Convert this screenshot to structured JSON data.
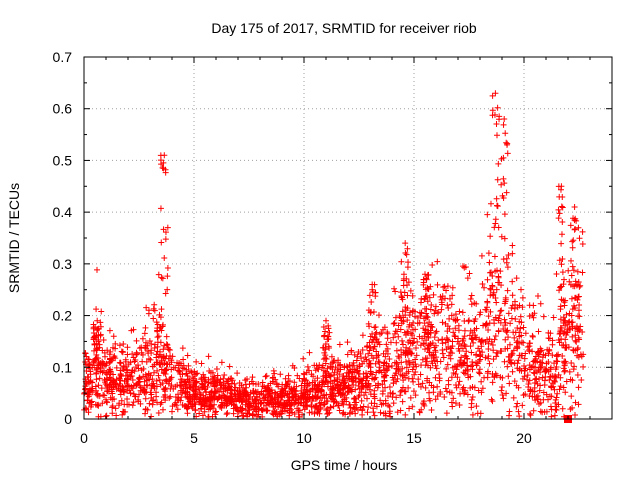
{
  "chart_data": {
    "type": "scatter",
    "title": "Day 175 of 2017, SRMTID for receiver riob",
    "xlabel": "GPS time / hours",
    "ylabel": "SRMTID / TECUs",
    "xlim": [
      0,
      24
    ],
    "ylim": [
      0,
      0.7
    ],
    "x_ticks": [
      0,
      5,
      10,
      15,
      20
    ],
    "x_tick_labels": [
      "0",
      "5",
      "10",
      "15",
      "20"
    ],
    "y_ticks": [
      0,
      0.1,
      0.2,
      0.3,
      0.4,
      0.5,
      0.6,
      0.7
    ],
    "y_tick_labels": [
      "0",
      "0.1",
      "0.2",
      "0.3",
      "0.4",
      "0.5",
      "0.6",
      "0.7"
    ],
    "grid": true,
    "marker": "+",
    "marker_color": "#ff0000",
    "series": [
      {
        "name": "SRMTID",
        "color": "#ff0000",
        "profile": [
          {
            "x": 0.0,
            "y": 0.07
          },
          {
            "x": 0.3,
            "y": 0.06
          },
          {
            "x": 0.6,
            "y": 0.12
          },
          {
            "x": 1.0,
            "y": 0.07
          },
          {
            "x": 2.0,
            "y": 0.07
          },
          {
            "x": 3.0,
            "y": 0.09
          },
          {
            "x": 3.5,
            "y": 0.12
          },
          {
            "x": 4.0,
            "y": 0.07
          },
          {
            "x": 5.0,
            "y": 0.05
          },
          {
            "x": 6.0,
            "y": 0.05
          },
          {
            "x": 7.0,
            "y": 0.035
          },
          {
            "x": 8.0,
            "y": 0.035
          },
          {
            "x": 9.0,
            "y": 0.04
          },
          {
            "x": 10.0,
            "y": 0.05
          },
          {
            "x": 11.0,
            "y": 0.06
          },
          {
            "x": 12.0,
            "y": 0.06
          },
          {
            "x": 13.0,
            "y": 0.08
          },
          {
            "x": 14.0,
            "y": 0.1
          },
          {
            "x": 15.0,
            "y": 0.13
          },
          {
            "x": 16.0,
            "y": 0.14
          },
          {
            "x": 17.0,
            "y": 0.12
          },
          {
            "x": 18.0,
            "y": 0.12
          },
          {
            "x": 18.5,
            "y": 0.18
          },
          {
            "x": 19.0,
            "y": 0.14
          },
          {
            "x": 20.0,
            "y": 0.13
          },
          {
            "x": 21.0,
            "y": 0.08
          },
          {
            "x": 21.5,
            "y": 0.12
          },
          {
            "x": 22.0,
            "y": 0.15
          },
          {
            "x": 22.6,
            "y": 0.18
          }
        ],
        "peaks": [
          {
            "x": 0.6,
            "y": 0.19
          },
          {
            "x": 3.65,
            "y": 0.51
          },
          {
            "x": 11.0,
            "y": 0.19
          },
          {
            "x": 13.1,
            "y": 0.26
          },
          {
            "x": 14.6,
            "y": 0.34
          },
          {
            "x": 15.5,
            "y": 0.28
          },
          {
            "x": 18.7,
            "y": 0.63
          },
          {
            "x": 19.1,
            "y": 0.58
          },
          {
            "x": 21.7,
            "y": 0.45
          },
          {
            "x": 22.3,
            "y": 0.41
          }
        ],
        "highlight_points": [
          {
            "x": 22.0,
            "y": 0.0
          }
        ],
        "x_range": [
          0,
          22.7
        ]
      }
    ]
  }
}
